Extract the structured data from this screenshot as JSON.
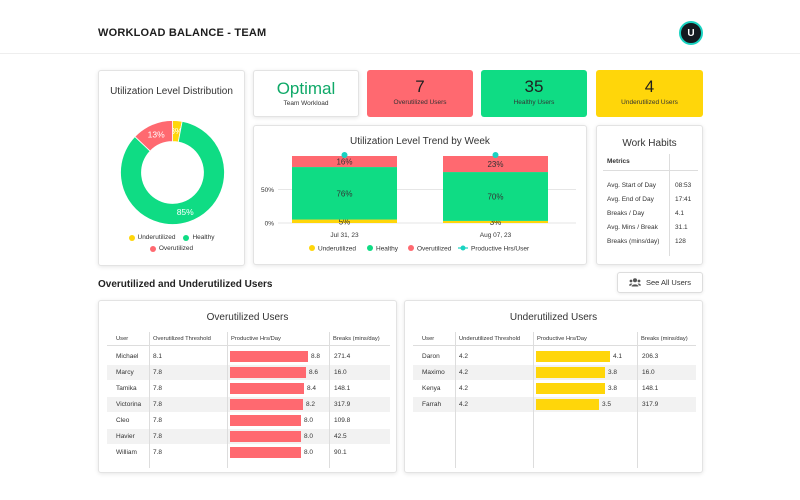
{
  "header": {
    "title": "WORKLOAD BALANCE - TEAM",
    "avatar_initial": "U"
  },
  "colors": {
    "underutilized": "#ffd60a",
    "healthy": "#0fdc84",
    "overutilized": "#ff6970",
    "productive": "#19d3c1",
    "optimal_text": "#0fa968"
  },
  "distribution": {
    "title": "Utilization Level Distribution",
    "chart_data": {
      "type": "pie",
      "categories": [
        "Underutilized",
        "Healthy",
        "Overutilized"
      ],
      "values": [
        3,
        85,
        13
      ],
      "labels": [
        "3%",
        "85%",
        "13%"
      ],
      "legend": [
        "Underutilized",
        "Healthy",
        "Overutilized"
      ]
    }
  },
  "kpis": {
    "optimal": {
      "value": "Optimal",
      "label": "Team Workload"
    },
    "overutilized": {
      "value": "7",
      "label": "Overutilized Users"
    },
    "healthy": {
      "value": "35",
      "label": "Healthy Users"
    },
    "underutilized": {
      "value": "4",
      "label": "Underutilized Users"
    }
  },
  "trend": {
    "title": "Utilization Level Trend by Week",
    "chart_data": {
      "type": "bar",
      "stacked": true,
      "categories": [
        "Jul 31, 23",
        "Aug 07, 23"
      ],
      "series": [
        {
          "name": "Underutilized",
          "values": [
            5,
            3
          ],
          "labels": [
            "5%",
            "3%"
          ]
        },
        {
          "name": "Healthy",
          "values": [
            76,
            70
          ],
          "labels": [
            "76%",
            "70%"
          ]
        },
        {
          "name": "Overutilized",
          "values": [
            16,
            23
          ],
          "labels": [
            "16%",
            "23%"
          ]
        },
        {
          "name": "Productive Hrs/User",
          "type": "line",
          "values": [
            100,
            100
          ]
        }
      ],
      "y_ticks": [
        "0%",
        "50%"
      ],
      "ylim": [
        0,
        100
      ],
      "legend_position": "bottom"
    }
  },
  "habits": {
    "title": "Work Habits",
    "head": "Metrics",
    "rows": [
      {
        "label": "Avg. Start of Day",
        "value": "08:53"
      },
      {
        "label": "Avg. End of Day",
        "value": "17:41"
      },
      {
        "label": "Breaks / Day",
        "value": "4.1"
      },
      {
        "label": "Avg. Mins / Break",
        "value": "31.1"
      },
      {
        "label": "Breaks (mins/day)",
        "value": "128"
      }
    ]
  },
  "section": {
    "title": "Overutilized and Underutilized Users",
    "see_all": "See All Users"
  },
  "over_table": {
    "title": "Overutilized Users",
    "columns": [
      "User",
      "Overutilized Threshold",
      "Productive Hrs/Day",
      "Breaks (mins/day)"
    ],
    "bar_max": 8.8,
    "rows": [
      {
        "user": "Michael",
        "threshold": "8.1",
        "hrs": 8.8,
        "hrs_label": "8.8",
        "breaks": "271.4"
      },
      {
        "user": "Marcy",
        "threshold": "7.8",
        "hrs": 8.6,
        "hrs_label": "8.6",
        "breaks": "16.0"
      },
      {
        "user": "Tamika",
        "threshold": "7.8",
        "hrs": 8.4,
        "hrs_label": "8.4",
        "breaks": "148.1"
      },
      {
        "user": "Victorina",
        "threshold": "7.8",
        "hrs": 8.2,
        "hrs_label": "8.2",
        "breaks": "317.9"
      },
      {
        "user": "Cleo",
        "threshold": "7.8",
        "hrs": 8.0,
        "hrs_label": "8.0",
        "breaks": "109.8"
      },
      {
        "user": "Havier",
        "threshold": "7.8",
        "hrs": 8.0,
        "hrs_label": "8.0",
        "breaks": "42.5"
      },
      {
        "user": "William",
        "threshold": "7.8",
        "hrs": 8.0,
        "hrs_label": "8.0",
        "breaks": "90.1"
      }
    ]
  },
  "under_table": {
    "title": "Underutilized Users",
    "columns": [
      "User",
      "Underutilized Threshold",
      "Productive Hrs/Day",
      "Breaks (mins/day)"
    ],
    "bar_max": 4.1,
    "rows": [
      {
        "user": "Daron",
        "threshold": "4.2",
        "hrs": 4.1,
        "hrs_label": "4.1",
        "breaks": "206.3"
      },
      {
        "user": "Maximo",
        "threshold": "4.2",
        "hrs": 3.8,
        "hrs_label": "3.8",
        "breaks": "16.0"
      },
      {
        "user": "Kenya",
        "threshold": "4.2",
        "hrs": 3.8,
        "hrs_label": "3.8",
        "breaks": "148.1"
      },
      {
        "user": "Farrah",
        "threshold": "4.2",
        "hrs": 3.5,
        "hrs_label": "3.5",
        "breaks": "317.9"
      }
    ]
  }
}
